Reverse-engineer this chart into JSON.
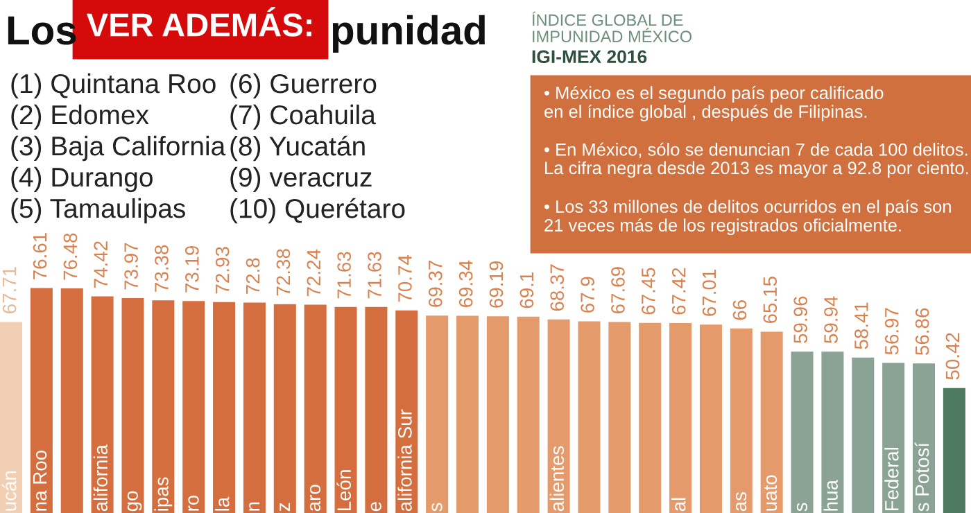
{
  "chart_data": {
    "type": "bar",
    "categories": [
      "ucán",
      "na Roo",
      null,
      "alifornia",
      "go",
      "ipas",
      "ro",
      "la",
      "n",
      "z",
      "aro",
      "León",
      "e",
      "alifornia Sur",
      "s",
      null,
      null,
      null,
      "alientes",
      null,
      null,
      null,
      "al",
      null,
      "as",
      "uato",
      "s",
      "hua",
      null,
      "Federal",
      "s Potosí",
      null
    ],
    "values": [
      67.71,
      76.61,
      76.48,
      74.42,
      73.97,
      73.38,
      73.19,
      72.93,
      72.8,
      72.38,
      72.24,
      71.63,
      71.63,
      70.74,
      69.37,
      69.34,
      69.19,
      69.1,
      68.37,
      67.9,
      67.69,
      67.45,
      67.42,
      67.01,
      66,
      65.15,
      59.96,
      59.94,
      58.41,
      56.97,
      56.86,
      50.42
    ],
    "colors": [
      "#f2cfb2",
      "#d46e3e",
      "#d46e3e",
      "#d46e3e",
      "#d46e3e",
      "#d46e3e",
      "#d46e3e",
      "#d46e3e",
      "#d46e3e",
      "#d46e3e",
      "#d46e3e",
      "#d46e3e",
      "#d46e3e",
      "#d46e3e",
      "#e59a6c",
      "#e59a6c",
      "#e59a6c",
      "#e59a6c",
      "#e59a6c",
      "#e59a6c",
      "#e59a6c",
      "#e59a6c",
      "#e59a6c",
      "#e59a6c",
      "#e59a6c",
      "#e59a6c",
      "#8aa394",
      "#8aa394",
      "#8aa394",
      "#8aa394",
      "#8aa394",
      "#4f7a62"
    ],
    "ylim": [
      17.7,
      152
    ],
    "data_labels": true,
    "annotations": [
      "Los",
      "VER ADEMÁS:",
      "punidad",
      "(1) Quintana Roo",
      "(2) Edomex",
      "(3) Baja California",
      "(4) Durango",
      "(5) Tamaulipas",
      "(6) Guerrero",
      "(7) Coahuila",
      "(8) Yucatán",
      "(9) veracruz",
      "(10) Querétaro",
      "ÍNDICE GLOBAL DE\nIMPUNIDAD MÉXICO",
      "IGI-MEX 2016",
      "• México es el segundo país peor calificado\nen el índice global , después de Filipinas.",
      "• En México, sólo se denuncian 7 de cada 100 delitos.\nLa cifra negra desde 2013 es mayor a 92.8 por ciento.",
      "• Los 33 millones de delitos ocurridos en el país son\n21 veces más de los registrados oficialmente."
    ]
  }
}
